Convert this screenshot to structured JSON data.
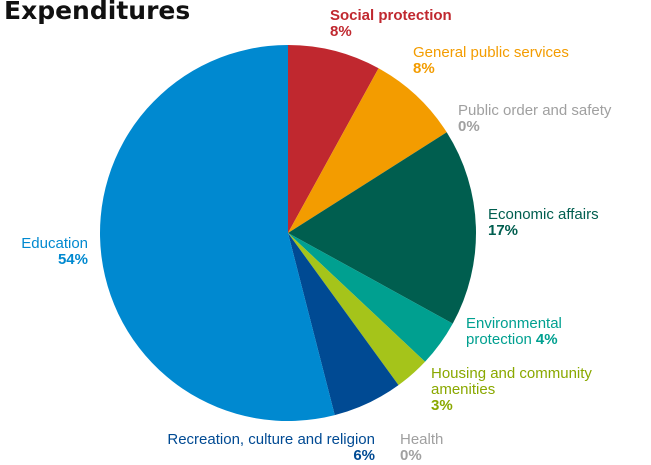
{
  "chart_data": {
    "type": "pie",
    "title": "Expenditures",
    "categories": [
      "Social protection",
      "General public services",
      "Public order and safety",
      "Economic affairs",
      "Environmental protection",
      "Housing and community amenities",
      "Health",
      "Recreation, culture and religion",
      "Education"
    ],
    "values": [
      8,
      8,
      0,
      17,
      4,
      3,
      0,
      6,
      54
    ],
    "value_labels": [
      "8%",
      "8%",
      "0%",
      "17%",
      "4%",
      "3%",
      "0%",
      "6%",
      "54%"
    ],
    "colors": [
      "#c0282f",
      "#f39c00",
      "#a0a0a0",
      "#005e4f",
      "#00a090",
      "#a5c41a",
      "#a0a0a0",
      "#004a93",
      "#0089d0"
    ]
  }
}
